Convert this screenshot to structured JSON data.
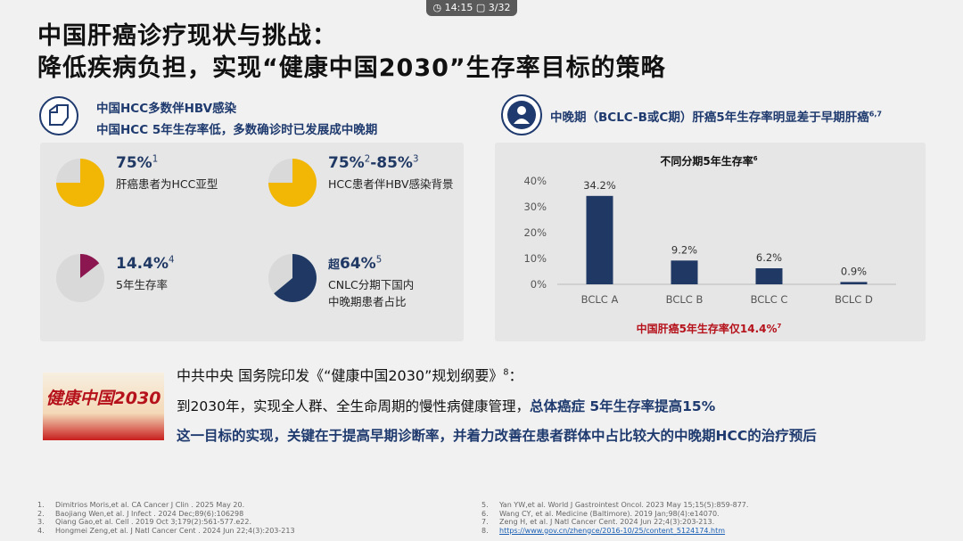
{
  "status_bar": {
    "time": "14:15",
    "page": "3/32"
  },
  "title": {
    "line1": "中国肝癌诊疗现状与挑战：",
    "line2": "降低疾病负担，实现“健康中国2030”生存率目标的策略"
  },
  "left_panel": {
    "heading1": "中国HCC多数伴HBV感染",
    "heading2": "中国HCC 5年生存率低，多数确诊时已发展成中晚期",
    "stats": [
      {
        "value": 75,
        "label": "75%",
        "sup": "1",
        "desc": [
          "肝癌患者为HCC亚型"
        ],
        "color": "#f2b705"
      },
      {
        "value": 75,
        "label": "75%",
        "sup": "2",
        "label_end": "-85%",
        "sup_end": "3",
        "desc": [
          "HCC患者伴HBV感染背景"
        ],
        "color": "#f2b705"
      },
      {
        "value": 14.4,
        "label": "14.4%",
        "sup": "4",
        "desc": [
          "5年生存率"
        ],
        "color": "#8b1650"
      },
      {
        "prefix": "超",
        "value": 64,
        "label": "64%",
        "sup": "5",
        "desc": [
          "CNLC分期下国内",
          "中晚期患者占比"
        ],
        "color": "#1f3864"
      }
    ]
  },
  "right_panel": {
    "heading": "中晚期（BCLC-B或C期）肝癌5年生存率明显差于早期肝癌",
    "heading_sup": "6,7",
    "chart": {
      "type": "bar",
      "title": "不同分期5年生存率",
      "title_sup": "6",
      "categories": [
        "BCLC A",
        "BCLC B",
        "BCLC C",
        "BCLC D"
      ],
      "values": [
        34.2,
        9.2,
        6.2,
        0.9
      ],
      "value_labels": [
        "34.2%",
        "9.2%",
        "6.2%",
        "0.9%"
      ],
      "color": "#1f3864",
      "ylim": [
        0,
        40
      ],
      "yticks": [
        {
          "value": 0,
          "label": "0%"
        },
        {
          "value": 10,
          "label": "10%"
        },
        {
          "value": 20,
          "label": "20%"
        },
        {
          "value": 30,
          "label": "30%"
        },
        {
          "value": 40,
          "label": "40%"
        }
      ],
      "note": "中国肝癌5年生存率仅14.4%",
      "note_sup": "7"
    }
  },
  "policy": {
    "banner_text": "健康中国2030",
    "heading": "中共中央 国务院印发《“健康中国2030”规划纲要》",
    "heading_sup": "8",
    "heading_end": "：",
    "line1": "到2030年，实现全人群、全生命周期的慢性病健康管理，",
    "line1_bold": "总体癌症 5年生存率提高15%",
    "line2": "这一目标的实现，关键在于提高早期诊断率，并着力改善在患者群体中占比较大的中晚期HCC的治疗预后"
  },
  "references": {
    "left": [
      {
        "num": "1.",
        "text": "Dimitrios Moris,et al. CA Cancer J Clin . 2025 May 20."
      },
      {
        "num": "2.",
        "text": "Baojiang Wen,et al. J Infect . 2024 Dec;89(6):106298"
      },
      {
        "num": "3.",
        "text": "Qiang Gao,et al. Cell . 2019 Oct 3;179(2):561-577.e22."
      },
      {
        "num": "4.",
        "text": "Hongmei Zeng,et al. J Natl Cancer Cent . 2024 Jun 22;4(3):203-213"
      }
    ],
    "right": [
      {
        "num": "5.",
        "text": "Yan YW,et al. World J Gastrointest Oncol. 2023 May 15;15(5):859-877."
      },
      {
        "num": "6.",
        "text": "Wang CY, et al. Medicine (Baltimore). 2019 Jan;98(4):e14070."
      },
      {
        "num": "7.",
        "text": "Zeng H, et al. J Natl Cancer Cent. 2024 Jun 22;4(3):203-213."
      },
      {
        "num": "8.",
        "text": "https://www.gov.cn/zhengce/2016-10/25/content_5124174.htm"
      }
    ]
  }
}
